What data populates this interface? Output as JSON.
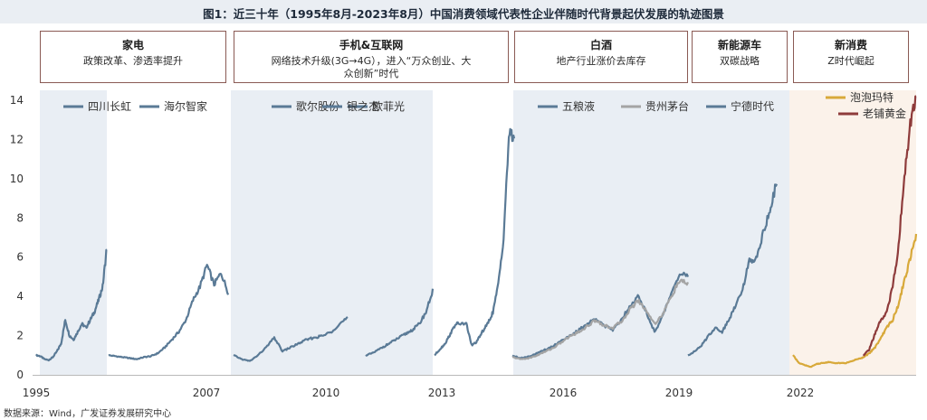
{
  "title": "图1：近三十年（1995年8月-2023年8月）中国消费领域代表性企业伴随时代背景起伏发展的轨迹图景",
  "source": "数据来源：Wind，广发证券发展研究中心",
  "eras": [
    {
      "name": "家电",
      "desc": "政策改革、渗透率提升"
    },
    {
      "name": "手机&互联网",
      "desc": "网络技术升级(3G→4G），进入“万众创业、大众创新”时代"
    },
    {
      "name": "白酒",
      "desc": "地产行业涨价去库存"
    },
    {
      "name": "新能源车",
      "desc": "双碳战略"
    },
    {
      "name": "新消费",
      "desc": "Z时代崛起"
    }
  ],
  "colors": {
    "blue": "#5a7a96",
    "gray": "#a4a4a4",
    "gold": "#d8a93a",
    "maroon": "#8e3b3b",
    "panel_blue": "#e9eef4",
    "panel_peach": "#fbf2ea"
  },
  "chart_data": {
    "type": "line",
    "title": "",
    "ylim": [
      0,
      14
    ],
    "yticks": [
      0,
      2,
      4,
      6,
      8,
      10,
      12,
      14
    ],
    "xtick_labels": [
      "1995",
      "2007",
      "2010",
      "2013",
      "2016",
      "2019",
      "2022"
    ],
    "grid": false,
    "panels": [
      {
        "era": "家电",
        "legend": [
          "四川长虹",
          "海尔智家"
        ],
        "series": [
          {
            "name": "四川长虹",
            "color": "blue",
            "values": [
              1.0,
              0.95,
              0.8,
              0.75,
              0.9,
              1.2,
              1.6,
              2.8,
              2.0,
              1.8,
              2.2,
              2.6,
              2.4,
              2.8,
              3.2,
              3.8,
              4.5,
              6.5
            ]
          },
          {
            "name": "海尔智家",
            "color": "blue",
            "values": [
              1.0,
              0.95,
              0.9,
              0.85,
              0.8,
              0.9,
              0.95,
              1.1,
              1.4,
              1.8,
              2.2,
              2.8,
              3.8,
              4.5,
              5.6,
              4.6,
              5.2,
              4.2
            ]
          }
        ]
      },
      {
        "era": "手机&互联网",
        "legend": [
          "歌尔股份",
          "欧菲光",
          "银之杰"
        ],
        "series": [
          {
            "name": "歌尔股份",
            "color": "blue",
            "values": [
              1.0,
              0.8,
              0.7,
              1.0,
              1.4,
              1.9,
              1.2,
              1.4,
              1.6,
              1.8,
              1.9,
              2.0,
              2.2,
              2.6,
              2.9
            ]
          },
          {
            "name": "欧菲光",
            "color": "blue",
            "values": [
              1.0,
              1.1,
              1.3,
              1.5,
              1.7,
              1.9,
              2.1,
              2.3,
              2.6,
              3.2,
              4.3
            ]
          },
          {
            "name": "银之杰",
            "color": "blue",
            "values": [
              1.0,
              1.3,
              1.6,
              2.1,
              2.6,
              2.6,
              2.6,
              1.5,
              1.7,
              2.2,
              2.6,
              3.2,
              4.6,
              7.0,
              12.2,
              12.1
            ]
          }
        ]
      },
      {
        "era": "白酒",
        "legend": [
          "五粮液",
          "贵州茅台"
        ],
        "series": [
          {
            "name": "五粮液",
            "color": "blue",
            "values": [
              1.0,
              0.85,
              0.95,
              1.1,
              1.3,
              1.5,
              1.8,
              2.0,
              2.3,
              2.6,
              2.9,
              2.5,
              2.3,
              2.8,
              3.5,
              4.0,
              3.2,
              2.2,
              3.0,
              4.2,
              5.2,
              5.0
            ]
          },
          {
            "name": "贵州茅台",
            "color": "gray",
            "values": [
              0.9,
              0.8,
              0.85,
              1.0,
              1.2,
              1.4,
              1.7,
              2.0,
              2.2,
              2.5,
              2.8,
              2.5,
              2.4,
              2.7,
              3.3,
              3.8,
              3.3,
              2.6,
              3.1,
              4.0,
              4.8,
              4.6
            ]
          }
        ]
      },
      {
        "era": "新能源车",
        "legend": [
          "宁德时代"
        ],
        "series": [
          {
            "name": "宁德时代",
            "color": "blue",
            "values": [
              1.0,
              1.2,
              1.5,
              2.0,
              2.4,
              2.2,
              2.8,
              3.6,
              4.4,
              5.8,
              6.0,
              7.2,
              8.4,
              9.8
            ]
          }
        ]
      },
      {
        "era": "新消费",
        "legend": [
          "泡泡玛特",
          "老铺黄金"
        ],
        "series": [
          {
            "name": "泡泡玛特",
            "color": "gold",
            "values": [
              1.0,
              0.6,
              0.5,
              0.4,
              0.55,
              0.6,
              0.65,
              0.6,
              0.6,
              0.6,
              0.7,
              0.8,
              0.9,
              1.1,
              1.4,
              1.9,
              2.4,
              2.8,
              3.6,
              4.8,
              6.0,
              7.2
            ]
          },
          {
            "name": "老铺黄金",
            "color": "maroon",
            "values": [
              null,
              null,
              null,
              null,
              null,
              null,
              null,
              null,
              null,
              null,
              null,
              null,
              1.0,
              1.3,
              2.1,
              2.8,
              3.2,
              4.5,
              6.5,
              10.2,
              12.8,
              14.3
            ]
          }
        ]
      }
    ]
  }
}
